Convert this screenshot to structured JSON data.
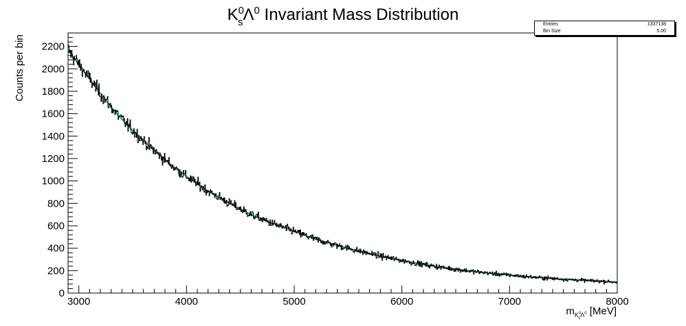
{
  "chart_data": {
    "type": "histogram",
    "title": {
      "main": "K",
      "sup1": "0",
      "sub1": "s",
      "mid": "Λ",
      "sup2": "0",
      "rest": " Invariant Mass Distribution"
    },
    "ylabel": "Counts per bin",
    "xlabel": {
      "base": "m",
      "sub": "K",
      "subsup": "0",
      "subsub": "s",
      "sub2": "Λ",
      "subsup2": "0",
      "unit": " [MeV]"
    },
    "xlim": [
      2900,
      8000
    ],
    "ylim": [
      0,
      2320
    ],
    "x_ticks": [
      3000,
      4000,
      5000,
      6000,
      7000,
      8000
    ],
    "x_tick_labels": [
      "3000",
      "4000",
      "5000",
      "6000",
      "7000",
      "8000"
    ],
    "y_ticks": [
      0,
      200,
      400,
      600,
      800,
      1000,
      1200,
      1400,
      1600,
      1800,
      2000,
      2200
    ],
    "y_tick_labels": [
      "0",
      "200",
      "400",
      "600",
      "800",
      "1000",
      "1200",
      "1400",
      "1600",
      "1800",
      "2000",
      "2200"
    ],
    "bin_size": 5,
    "binned_counts_x": [
      2900,
      3000,
      3100,
      3200,
      3300,
      3400,
      3500,
      3600,
      3700,
      3800,
      3900,
      4000,
      4200,
      4400,
      4600,
      4800,
      5000,
      5200,
      5400,
      5600,
      5800,
      6000,
      6200,
      6400,
      6600,
      6800,
      7000,
      7200,
      7400,
      7600,
      7800,
      8000
    ],
    "binned_counts_y": [
      2170,
      2040,
      1910,
      1780,
      1660,
      1550,
      1450,
      1360,
      1270,
      1190,
      1110,
      1040,
      910,
      800,
      700,
      620,
      550,
      480,
      425,
      375,
      330,
      290,
      255,
      225,
      200,
      178,
      160,
      143,
      130,
      118,
      108,
      98
    ],
    "fit_color": "#1a9990",
    "hist_color": "#000000",
    "stats": {
      "entries_label": "Entries",
      "entries_value": "1337138",
      "binsize_label": "Bin Size",
      "binsize_value": "5.00"
    }
  }
}
